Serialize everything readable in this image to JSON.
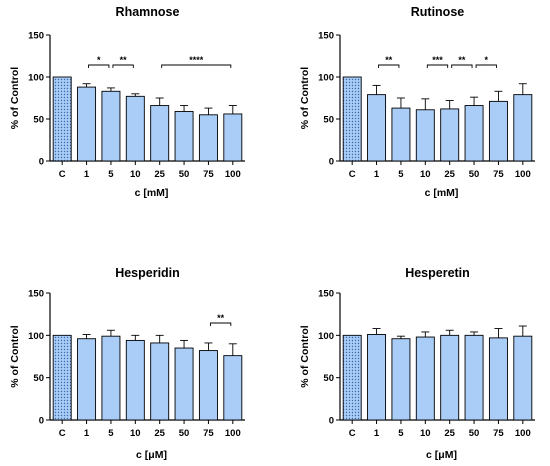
{
  "colors": {
    "bar_fill": "#a9cdf7",
    "bar_stroke": "#000000",
    "control_fill": "#a9cdf7",
    "control_pattern": "dotted"
  },
  "chart_data": [
    {
      "type": "bar",
      "title": "Rhamnose",
      "xlabel": "c [mM]",
      "ylabel": "% of Control",
      "ylim": [
        0,
        150
      ],
      "yticks": [
        "0",
        "50",
        "100",
        "150"
      ],
      "categories": [
        "C",
        "1",
        "5",
        "10",
        "25",
        "50",
        "75",
        "100"
      ],
      "values": [
        100,
        88,
        83,
        77,
        66,
        59,
        55,
        56
      ],
      "errors": [
        0,
        4,
        4,
        3,
        9,
        7,
        8,
        10
      ],
      "significance": [
        {
          "from": "1",
          "to": "5",
          "label": "*"
        },
        {
          "from": "5",
          "to": "10",
          "label": "**"
        },
        {
          "from": "25",
          "to": "100",
          "label": "****"
        }
      ]
    },
    {
      "type": "bar",
      "title": "Rutinose",
      "xlabel": "c [mM]",
      "ylabel": "% of Control",
      "ylim": [
        0,
        150
      ],
      "yticks": [
        "0",
        "50",
        "100",
        "150"
      ],
      "categories": [
        "C",
        "1",
        "5",
        "10",
        "25",
        "50",
        "75",
        "100"
      ],
      "values": [
        100,
        79,
        63,
        61,
        62,
        66,
        71,
        79
      ],
      "errors": [
        0,
        11,
        12,
        13,
        10,
        10,
        12,
        13
      ],
      "significance": [
        {
          "from": "1",
          "to": "5",
          "label": "**"
        },
        {
          "from": "10",
          "to": "25",
          "label": "***"
        },
        {
          "from": "25",
          "to": "50",
          "label": "**"
        },
        {
          "from": "50",
          "to": "75",
          "label": "*"
        }
      ]
    },
    {
      "type": "bar",
      "title": "Hesperidin",
      "xlabel": "c [μM]",
      "ylabel": "% of Control",
      "ylim": [
        0,
        150
      ],
      "yticks": [
        "0",
        "50",
        "100",
        "150"
      ],
      "categories": [
        "C",
        "1",
        "5",
        "10",
        "25",
        "50",
        "75",
        "100"
      ],
      "values": [
        100,
        96,
        99,
        94,
        91,
        85,
        82,
        76
      ],
      "errors": [
        0,
        5,
        7,
        6,
        9,
        9,
        9,
        14
      ],
      "significance": [
        {
          "from": "75",
          "to": "100",
          "label": "**"
        }
      ]
    },
    {
      "type": "bar",
      "title": "Hesperetin",
      "xlabel": "c [μM]",
      "ylabel": "% of Control",
      "ylim": [
        0,
        150
      ],
      "yticks": [
        "0",
        "50",
        "100",
        "150"
      ],
      "categories": [
        "C",
        "1",
        "5",
        "10",
        "25",
        "50",
        "75",
        "100"
      ],
      "values": [
        100,
        101,
        96,
        98,
        100,
        100,
        97,
        99
      ],
      "errors": [
        0,
        7,
        3,
        6,
        6,
        4,
        11,
        12
      ],
      "significance": []
    }
  ]
}
